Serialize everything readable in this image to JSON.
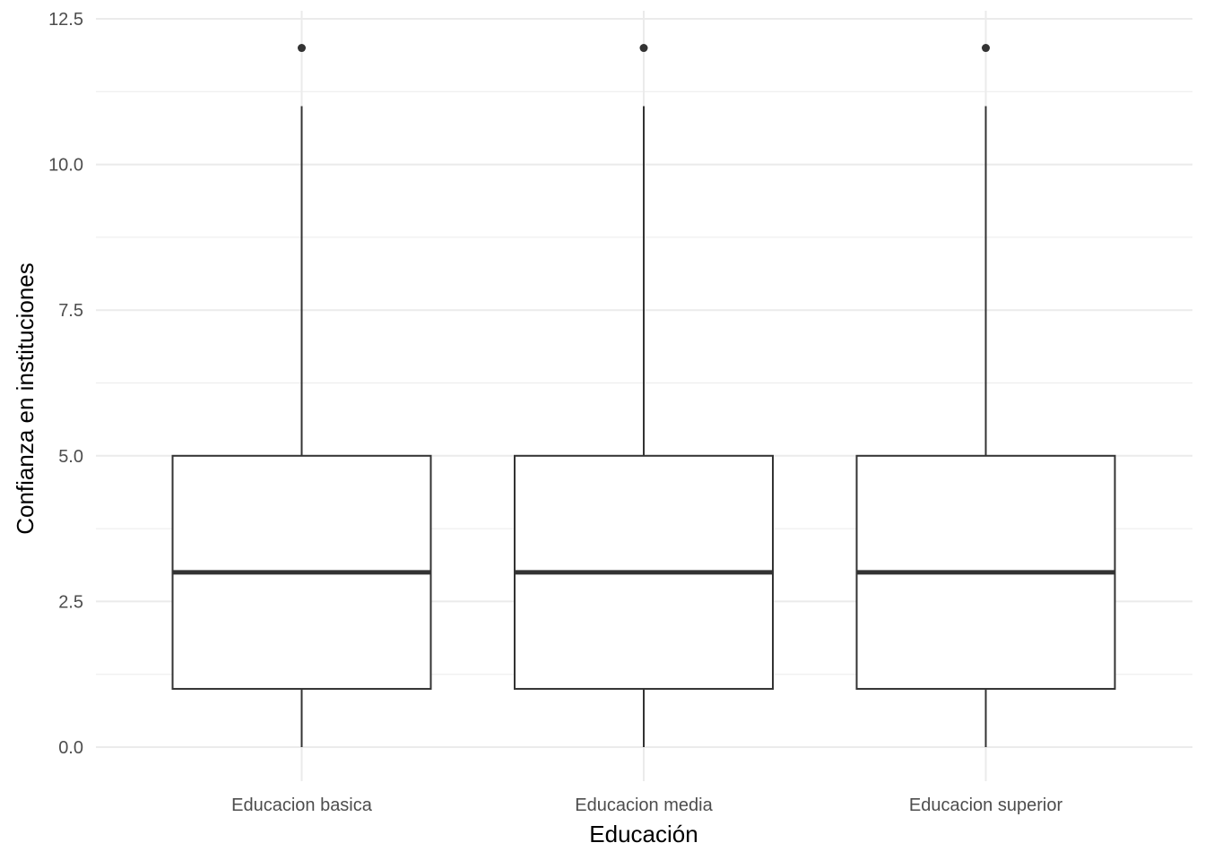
{
  "chart_data": {
    "type": "boxplot",
    "xlabel": "Educación",
    "ylabel": "Confianza en instituciones",
    "ylim": [
      -0.6,
      12.5
    ],
    "y_ticks": [
      "0.0",
      "2.5",
      "5.0",
      "7.5",
      "10.0",
      "12.5"
    ],
    "y_tick_values": [
      0,
      2.5,
      5,
      7.5,
      10,
      12.5
    ],
    "y_minor_values": [
      1.25,
      3.75,
      6.25,
      8.75,
      11.25
    ],
    "grid": true,
    "categories": [
      "Educacion basica",
      "Educacion media",
      "Educacion superior"
    ],
    "boxes": [
      {
        "category": "Educacion basica",
        "min": 0,
        "q1": 1,
        "median": 3,
        "q3": 5,
        "max": 11,
        "outliers": [
          12
        ]
      },
      {
        "category": "Educacion media",
        "min": 0,
        "q1": 1,
        "median": 3,
        "q3": 5,
        "max": 11,
        "outliers": [
          12
        ]
      },
      {
        "category": "Educacion superior",
        "min": 0,
        "q1": 1,
        "median": 3,
        "q3": 5,
        "max": 11,
        "outliers": [
          12
        ]
      }
    ],
    "colors": {
      "grid": "#ebebeb",
      "box_line": "#333333",
      "box_fill": "#ffffff",
      "tick_text": "#4d4d4d"
    }
  }
}
